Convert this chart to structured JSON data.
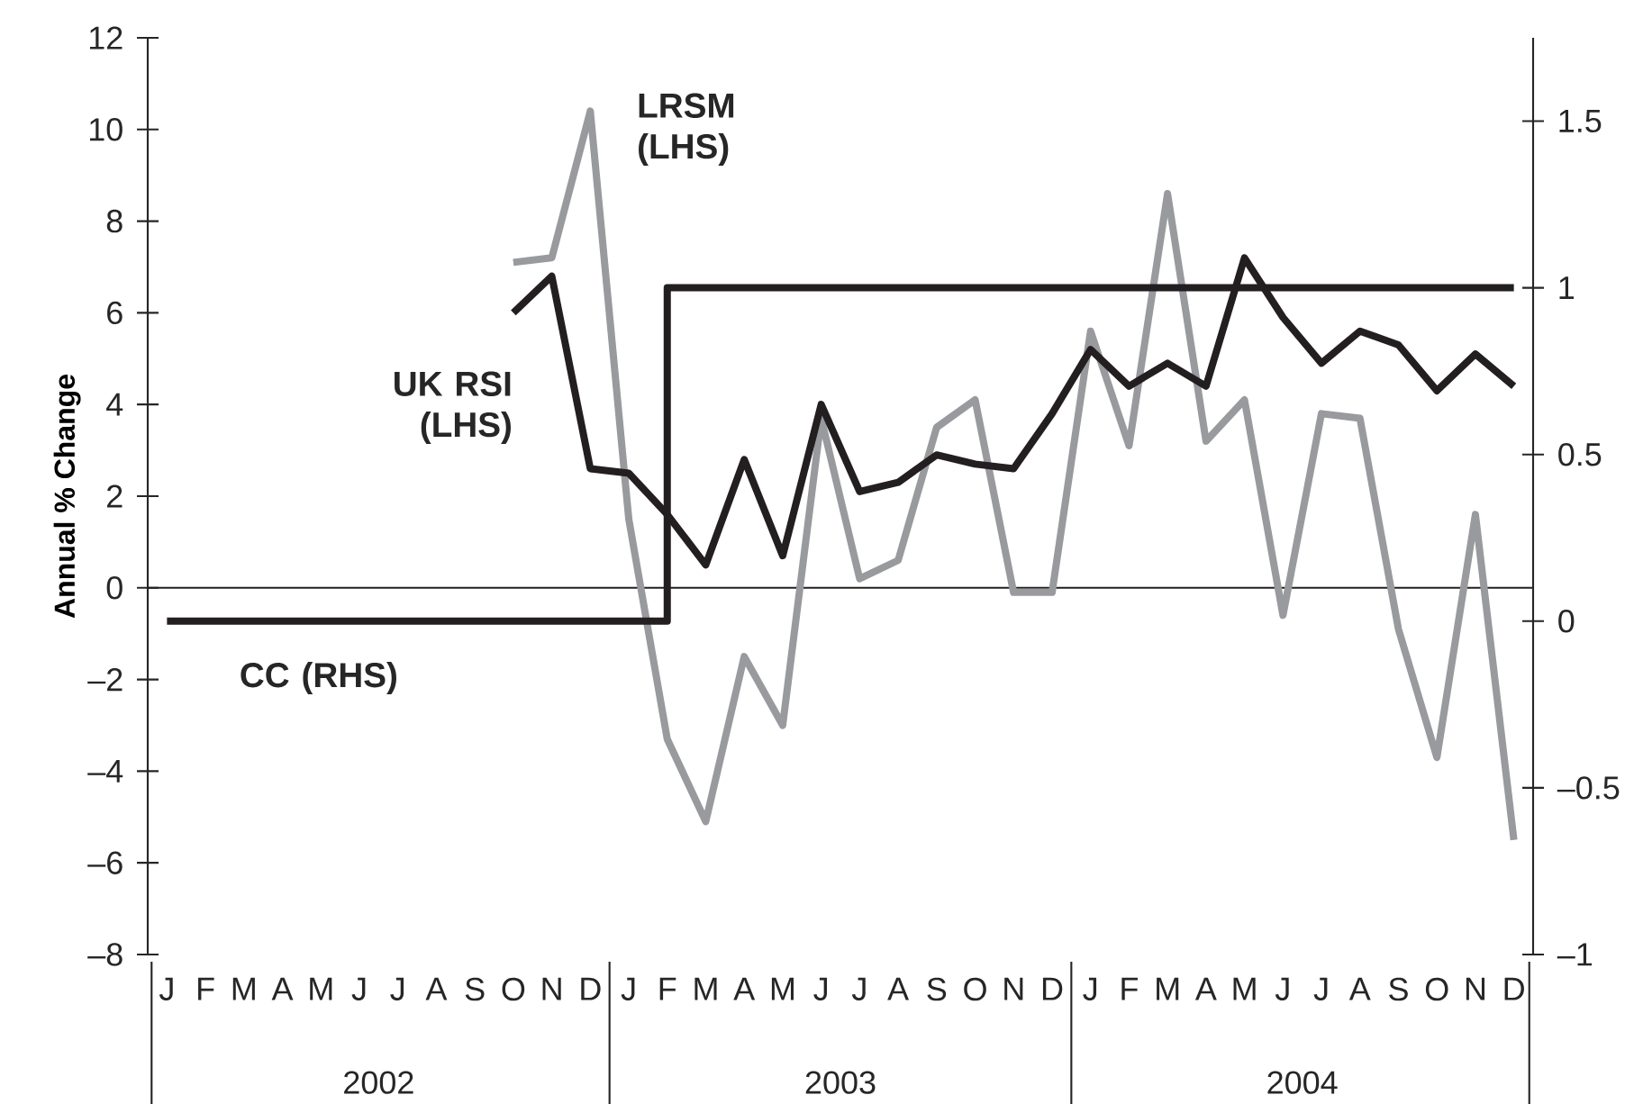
{
  "chart_data": {
    "type": "line",
    "ylabel": "Annual % Change",
    "categories": [
      "J",
      "F",
      "M",
      "A",
      "M",
      "J",
      "J",
      "A",
      "S",
      "O",
      "N",
      "D",
      "J",
      "F",
      "M",
      "A",
      "M",
      "J",
      "J",
      "A",
      "S",
      "O",
      "N",
      "D",
      "J",
      "F",
      "M",
      "A",
      "M",
      "J",
      "J",
      "A",
      "S",
      "O",
      "N",
      "D"
    ],
    "annotations": [
      "2002",
      "2003",
      "2004"
    ],
    "ylim": [
      -8,
      12
    ],
    "yticks": [
      {
        "value": -8,
        "label": "–8"
      },
      {
        "value": -6,
        "label": "–6"
      },
      {
        "value": -4,
        "label": "–4"
      },
      {
        "value": -2,
        "label": "–2"
      },
      0,
      2,
      4,
      6,
      8,
      10,
      12
    ],
    "y2lim": [
      -1,
      1.75
    ],
    "y2ticks": [
      {
        "value": -1,
        "label": "–1"
      },
      {
        "value": -0.5,
        "label": "–0.5"
      },
      0,
      0.5,
      1,
      1.5
    ],
    "ref_lines": [
      {
        "axis": "y",
        "value": 0,
        "color": "#231f20"
      }
    ],
    "grid": false,
    "legend": false,
    "marker": "none",
    "line_style": "solid",
    "series": [
      {
        "name": "LRSM (LHS)",
        "color": "#999a9e",
        "values": [
          null,
          null,
          null,
          null,
          null,
          null,
          null,
          null,
          null,
          7.1,
          7.2,
          10.4,
          1.5,
          -3.3,
          -5.1,
          -1.5,
          -3.0,
          3.7,
          0.2,
          0.6,
          3.5,
          4.1,
          -0.1,
          -0.1,
          5.6,
          3.1,
          8.6,
          3.2,
          4.1,
          -0.6,
          3.8,
          3.7,
          -0.9,
          -3.7,
          1.6,
          -5.5
        ]
      },
      {
        "name": "UK RSI (LHS)",
        "color": "#231f20",
        "values": [
          null,
          null,
          null,
          null,
          null,
          null,
          null,
          null,
          null,
          6.0,
          6.8,
          2.6,
          2.5,
          1.6,
          0.5,
          2.8,
          0.7,
          4.0,
          2.1,
          2.3,
          2.9,
          2.7,
          2.6,
          3.8,
          5.2,
          4.4,
          4.9,
          4.4,
          7.2,
          5.9,
          4.9,
          5.6,
          5.3,
          4.3,
          5.1,
          4.4
        ]
      },
      {
        "name": "CC (RHS)",
        "type": "step",
        "axis": "y2",
        "color": "#231f20",
        "values": [
          0,
          0,
          0,
          0,
          0,
          0,
          0,
          0,
          0,
          0,
          0,
          0,
          0,
          1,
          1,
          1,
          1,
          1,
          1,
          1,
          1,
          1,
          1,
          1,
          1,
          1,
          1,
          1,
          1,
          1,
          1,
          1,
          1,
          1,
          1,
          1
        ]
      }
    ]
  }
}
